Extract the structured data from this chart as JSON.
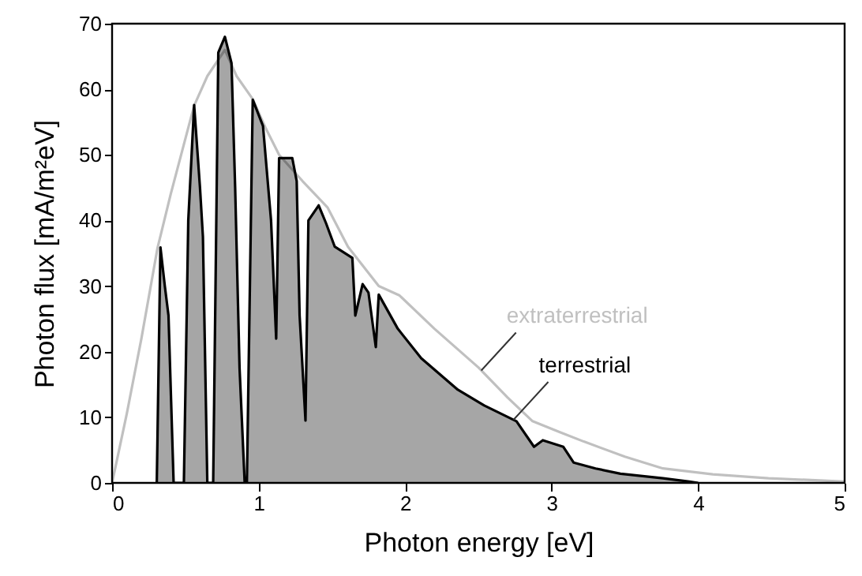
{
  "chart_data": {
    "type": "line",
    "xlabel": "Photon energy  [eV]",
    "ylabel": "Photon flux  [mA/m²eV]",
    "xlim": [
      0,
      5
    ],
    "xticks": [
      0,
      1,
      2,
      3,
      4,
      5
    ],
    "ylim": [
      0,
      70
    ],
    "yticks": [
      0,
      10,
      20,
      30,
      40,
      50,
      60,
      70
    ],
    "series": [
      {
        "name": "extraterrestrial",
        "type": "line",
        "color": "#c0c0c0",
        "x": [
          0,
          0.1,
          0.2,
          0.31,
          0.4,
          0.56,
          0.65,
          0.77,
          0.85,
          0.96,
          1.05,
          1.14,
          1.3,
          1.47,
          1.61,
          1.82,
          1.96,
          2.2,
          2.5,
          2.7,
          2.87,
          3.05,
          3.22,
          3.5,
          3.76,
          4.1,
          4.48,
          4.8,
          5
        ],
        "values": [
          0,
          10.5,
          22,
          35.8,
          44,
          57.5,
          62,
          66,
          62,
          58.5,
          54,
          50,
          46,
          42,
          36,
          30,
          28.6,
          23.5,
          17.6,
          13,
          9.4,
          7.8,
          6.3,
          4,
          2.2,
          1.3,
          0.7,
          0.4,
          0.2
        ]
      },
      {
        "name": "terrestrial",
        "type": "area",
        "color": "#000000",
        "x": [
          0.3,
          0.305,
          0.33,
          0.36,
          0.385,
          0.42,
          0.49,
          0.52,
          0.56,
          0.6,
          0.62,
          0.65,
          0.69,
          0.725,
          0.77,
          0.815,
          0.84,
          0.87,
          0.905,
          0.92,
          0.96,
          1.03,
          1.085,
          1.12,
          1.14,
          1.23,
          1.26,
          1.28,
          1.32,
          1.34,
          1.41,
          1.46,
          1.52,
          1.64,
          1.66,
          1.71,
          1.75,
          1.8,
          1.82,
          1.95,
          2.11,
          2.36,
          2.54,
          2.76,
          2.88,
          2.94,
          3.08,
          3.15,
          3.3,
          3.47,
          3.76,
          3.94,
          4.0
        ],
        "values": [
          0,
          0,
          35.9,
          30,
          25.5,
          0,
          0,
          40,
          57.6,
          45,
          37.5,
          0,
          0,
          65.6,
          68,
          64,
          45,
          17.5,
          0,
          0,
          58.4,
          54.4,
          40,
          22,
          49.5,
          49.5,
          46,
          25.5,
          9.5,
          40,
          42.3,
          39.6,
          36,
          34.3,
          25.5,
          30.3,
          29,
          20.7,
          28.7,
          23.5,
          19,
          14.2,
          11.8,
          9.4,
          5.5,
          6.5,
          5.5,
          3.1,
          2.2,
          1.4,
          0.7,
          0.2,
          0
        ]
      }
    ]
  }
}
